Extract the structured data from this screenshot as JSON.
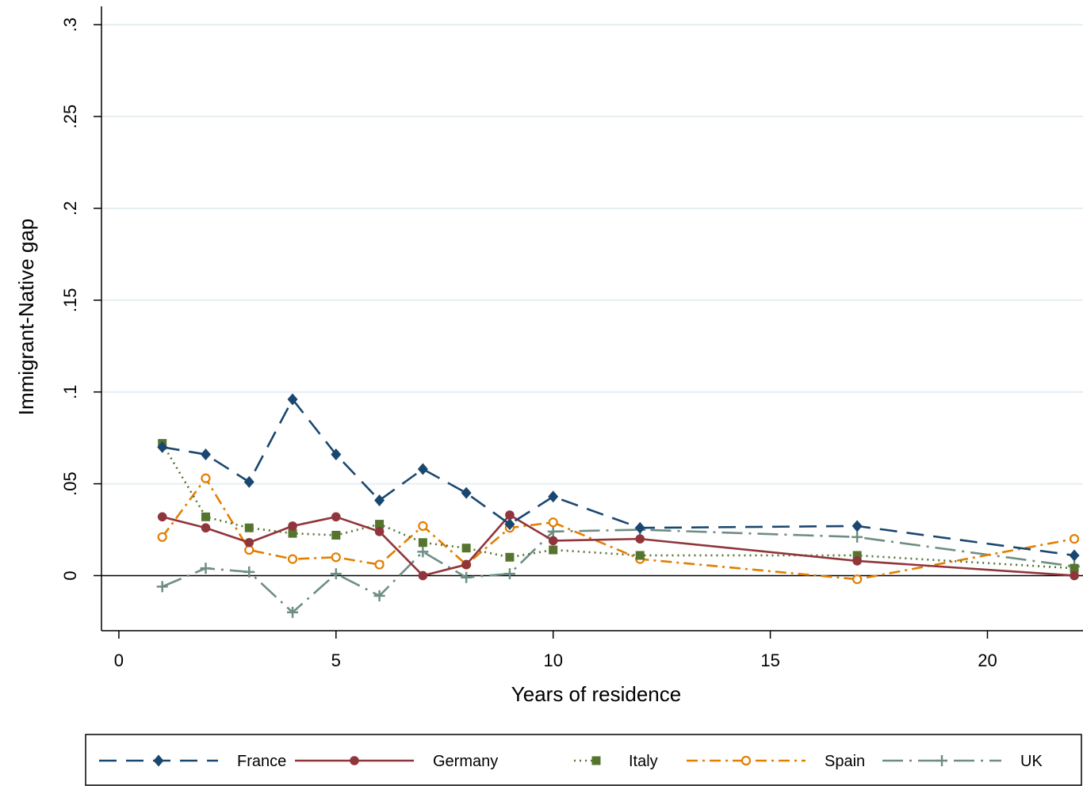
{
  "chart_data": {
    "type": "line",
    "title": "",
    "xlabel": "Years of residence",
    "ylabel": "Immigrant-Native gap",
    "xlim": [
      -0.4,
      22.2
    ],
    "ylim": [
      -0.03,
      0.31
    ],
    "xticks": [
      0,
      5,
      10,
      15,
      20
    ],
    "xtick_labels": [
      "0",
      "5",
      "10",
      "15",
      "20"
    ],
    "yticks": [
      0,
      0.05,
      0.1,
      0.15,
      0.2,
      0.25,
      0.3
    ],
    "ytick_labels": [
      "0",
      ".05",
      ".1",
      ".15",
      ".2",
      ".25",
      ".3"
    ],
    "grid": "horizontal",
    "zero_line": true,
    "legend_position": "bottom",
    "series": [
      {
        "name": "France",
        "color": "#1a476f",
        "dash": "long-dash",
        "marker": "diamond",
        "x": [
          1,
          2,
          3,
          4,
          5,
          6,
          7,
          8,
          9,
          10,
          12,
          17,
          22
        ],
        "y": [
          0.07,
          0.066,
          0.051,
          0.096,
          0.066,
          0.041,
          0.058,
          0.045,
          0.028,
          0.043,
          0.026,
          0.027,
          0.011
        ]
      },
      {
        "name": "Germany",
        "color": "#90353b",
        "dash": "solid",
        "marker": "circle",
        "x": [
          1,
          2,
          3,
          4,
          5,
          6,
          7,
          8,
          9,
          10,
          12,
          17,
          22
        ],
        "y": [
          0.032,
          0.026,
          0.018,
          0.027,
          0.032,
          0.024,
          0.0,
          0.006,
          0.033,
          0.019,
          0.02,
          0.008,
          0.0
        ]
      },
      {
        "name": "Italy",
        "color": "#55752f",
        "dash": "dotted",
        "marker": "square",
        "x": [
          1,
          2,
          3,
          4,
          5,
          6,
          7,
          8,
          9,
          10,
          12,
          17,
          22
        ],
        "y": [
          0.072,
          0.032,
          0.026,
          0.023,
          0.022,
          0.028,
          0.018,
          0.015,
          0.01,
          0.014,
          0.011,
          0.011,
          0.004
        ]
      },
      {
        "name": "Spain",
        "color": "#e37e00",
        "dash": "dash-dot",
        "marker": "hollow-circle",
        "x": [
          1,
          2,
          3,
          4,
          5,
          6,
          7,
          8,
          9,
          10,
          12,
          17,
          22
        ],
        "y": [
          0.021,
          0.053,
          0.014,
          0.009,
          0.01,
          0.006,
          0.027,
          0.006,
          0.026,
          0.029,
          0.009,
          -0.002,
          0.02
        ]
      },
      {
        "name": "UK",
        "color": "#6e8e84",
        "dash": "long-dash-dot",
        "marker": "plus",
        "x": [
          1,
          2,
          3,
          4,
          5,
          6,
          7,
          8,
          9,
          10,
          12,
          17,
          22
        ],
        "y": [
          -0.006,
          0.004,
          0.002,
          -0.02,
          0.001,
          -0.011,
          0.013,
          -0.001,
          0.001,
          0.024,
          0.025,
          0.021,
          0.005
        ]
      }
    ]
  }
}
